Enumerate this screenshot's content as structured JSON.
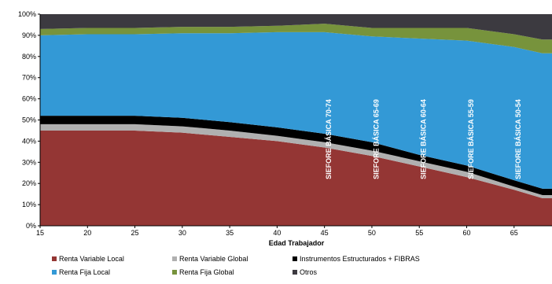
{
  "chart_data": {
    "type": "area",
    "stacked": true,
    "percent": true,
    "xlabel": "Edad Trabajador",
    "ylabel": "",
    "title": "",
    "x_ticks": [
      15,
      20,
      25,
      30,
      35,
      40,
      45,
      50,
      55,
      60,
      65
    ],
    "xlim": [
      15,
      69
    ],
    "ylim": [
      0,
      100
    ],
    "y_ticks": [
      "0%",
      "10%",
      "20%",
      "30%",
      "40%",
      "50%",
      "60%",
      "70%",
      "80%",
      "90%",
      "100%"
    ],
    "grid": false,
    "legend_position": "bottom",
    "x": [
      15,
      20,
      25,
      30,
      35,
      40,
      45,
      50,
      55,
      60,
      65,
      68,
      69
    ],
    "series": [
      {
        "name": "Renta Variable Local",
        "color": "#943634",
        "values": [
          45,
          45,
          45,
          44,
          42,
          40,
          37,
          33,
          28,
          23,
          17,
          13,
          13
        ]
      },
      {
        "name": "Renta Variable Global",
        "color": "#b0b0b0",
        "values": [
          3,
          3,
          3,
          3,
          3,
          2.5,
          2.5,
          2.5,
          2.5,
          2.5,
          1.5,
          1.5,
          1.5
        ]
      },
      {
        "name": "Instrumentos Estructurados + FIBRAS",
        "color": "#000000",
        "values": [
          4,
          4,
          4,
          4,
          4,
          4,
          4,
          4,
          3,
          3,
          3,
          3,
          3
        ]
      },
      {
        "name": "Renta Fija Local",
        "color": "#3399d6",
        "values": [
          38,
          38.5,
          38.5,
          40,
          42,
          45,
          48,
          50,
          55,
          59,
          63,
          64,
          64
        ]
      },
      {
        "name": "Renta Fija Global",
        "color": "#77933c",
        "values": [
          3,
          3,
          3,
          3,
          3,
          3,
          4,
          4,
          5,
          6,
          6,
          6.5,
          6.5
        ]
      },
      {
        "name": "Otros",
        "color": "#3c3a40",
        "values": [
          7,
          6.5,
          6.5,
          6,
          6,
          5.5,
          4.5,
          6.5,
          6.5,
          6.5,
          9.5,
          12,
          12
        ]
      }
    ],
    "annotations": [
      {
        "text": "SIEFORE BÁSICA 70-74",
        "x": 45.5,
        "y": 22
      },
      {
        "text": "SIEFORE BÁSICA 65-69",
        "x": 50.5,
        "y": 22
      },
      {
        "text": "SIEFORE BÁSICA 60-64",
        "x": 55.5,
        "y": 22
      },
      {
        "text": "SIEFORE BÁSICA 55-59",
        "x": 60.5,
        "y": 22
      },
      {
        "text": "SIEFORE BÁSICA 50-54",
        "x": 65.5,
        "y": 22
      }
    ],
    "legend": [
      "Renta Variable Local",
      "Renta Variable Global",
      "Instrumentos Estructurados + FIBRAS",
      "Renta Fija Local",
      "Renta Fija Global",
      "Otros"
    ]
  }
}
